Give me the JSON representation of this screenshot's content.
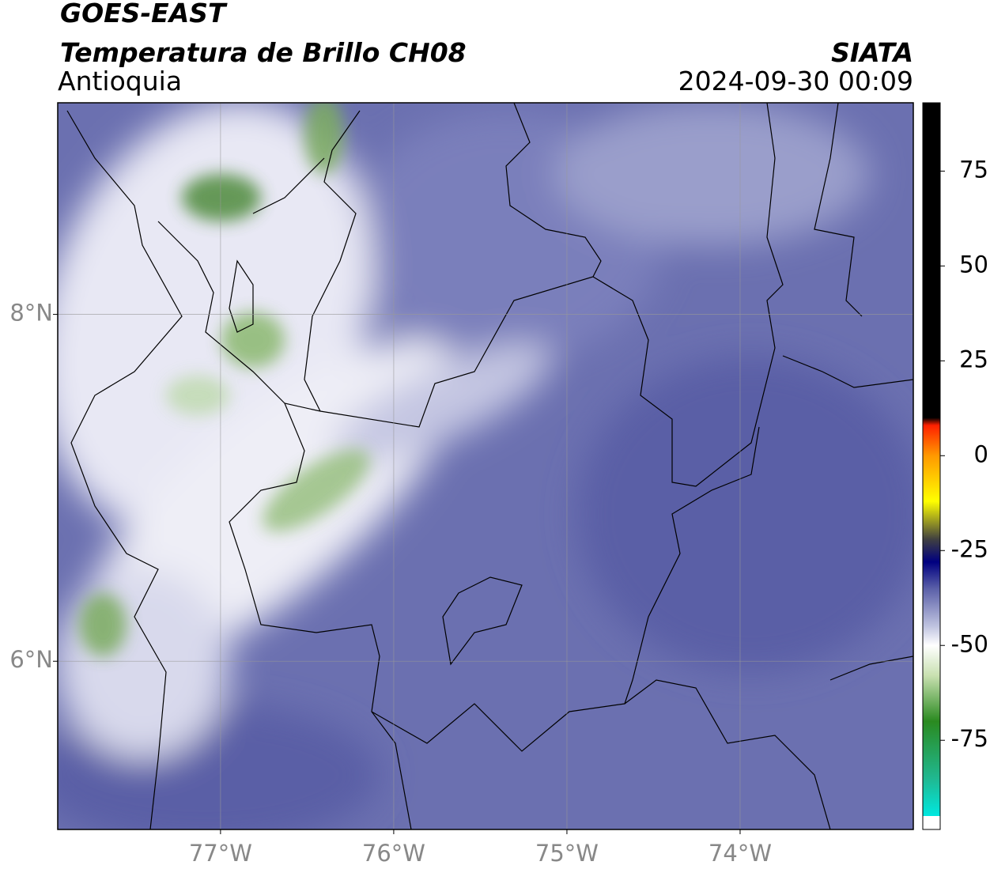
{
  "header": {
    "title": "GOES-EAST",
    "subtitle": "Temperatura de Brillo CH08",
    "region": "Antioquia",
    "source": "SIATA",
    "datetime": "2024-09-30 00:09"
  },
  "map": {
    "xlim": [
      -77.94,
      -73.0
    ],
    "ylim": [
      5.03,
      9.22
    ],
    "xticks": [
      {
        "value": -77,
        "label": "77°W"
      },
      {
        "value": -76,
        "label": "76°W"
      },
      {
        "value": -75,
        "label": "75°W"
      },
      {
        "value": -74,
        "label": "74°W"
      }
    ],
    "yticks": [
      {
        "value": 6,
        "label": "6°N"
      },
      {
        "value": 8,
        "label": "8°N"
      }
    ],
    "grid": true
  },
  "colorbar": {
    "lim": [
      -98.5,
      93
    ],
    "ticks": [
      -75,
      -50,
      -25,
      0,
      25,
      50,
      75
    ],
    "stops": [
      {
        "value": -98.5,
        "color": "#ffffff"
      },
      {
        "value": -95,
        "color": "#ffffff"
      },
      {
        "value": -95,
        "color": "#00e8e0"
      },
      {
        "value": -85,
        "color": "#20b890"
      },
      {
        "value": -70,
        "color": "#2a8a20"
      },
      {
        "value": -58,
        "color": "#c8e0b0"
      },
      {
        "value": -50,
        "color": "#ffffff"
      },
      {
        "value": -45,
        "color": "#c0c4e0"
      },
      {
        "value": -35,
        "color": "#5a5fa8"
      },
      {
        "value": -28,
        "color": "#000080"
      },
      {
        "value": -22,
        "color": "#404040"
      },
      {
        "value": -12,
        "color": "#ffff00"
      },
      {
        "value": 0,
        "color": "#ff9900"
      },
      {
        "value": 8,
        "color": "#ff2000"
      },
      {
        "value": 10,
        "color": "#000000"
      },
      {
        "value": 93,
        "color": "#000000"
      }
    ]
  }
}
